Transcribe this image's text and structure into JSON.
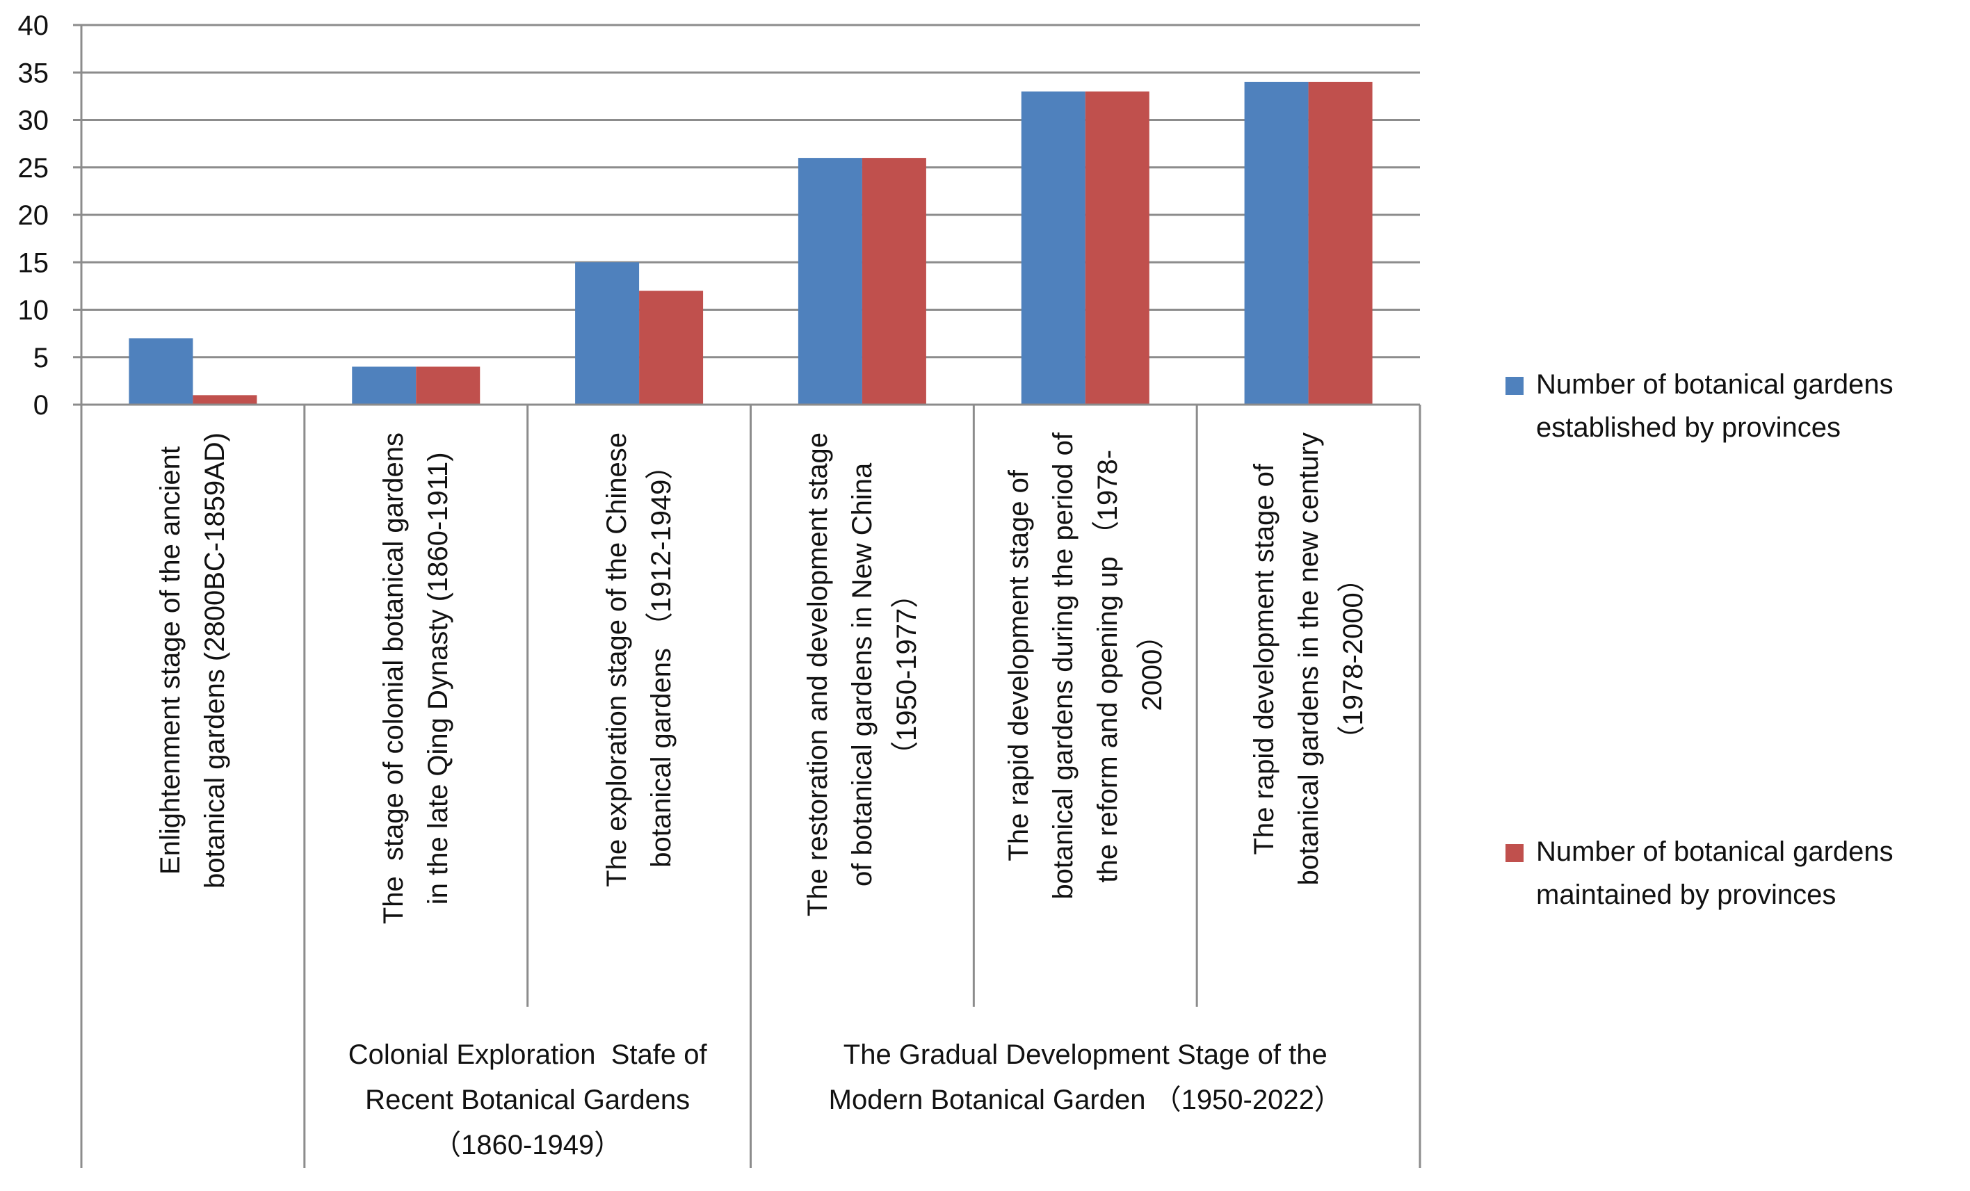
{
  "chart_data": {
    "type": "bar",
    "title": "",
    "xlabel": "",
    "ylabel": "",
    "ylim": [
      0,
      40
    ],
    "yticks": [
      0,
      5,
      10,
      15,
      20,
      25,
      30,
      35,
      40
    ],
    "grid": true,
    "legend_position": "right",
    "categories": [
      "Enlightenment stage of the ancient\nbotanical gardens (2800BC-1859AD)",
      "The  stage of colonial botanical gardens\nin the late Qing Dynasty (1860-1911)",
      "The exploration stage of the Chinese\nbotanical gardens （1912-1949）",
      "The restoration and development stage\nof botanical gardens in New China\n（1950-1977）",
      "The rapid development stage of\nbotanical gardens during the period of\nthe reform and opening up （1978-\n2000）",
      "The rapid development stage of\nbotanical gardens in the new century\n（1978-2000）"
    ],
    "groups": [
      {
        "label": "",
        "categories": [
          0
        ]
      },
      {
        "label": "Colonial Exploration  Stafe of\nRecent Botanical Gardens\n（1860-1949）",
        "categories": [
          1,
          2
        ]
      },
      {
        "label": "The Gradual Development Stage of the\nModern Botanical Garden （1950-2022）",
        "categories": [
          3,
          4,
          5
        ]
      }
    ],
    "series": [
      {
        "name": "Number of botanical gardens\nestablished by provinces",
        "color": "#4f81bd",
        "values": [
          7,
          4,
          15,
          26,
          33,
          34
        ]
      },
      {
        "name": "Number of botanical gardens\nmaintained by provinces",
        "color": "#c0504d",
        "values": [
          1,
          4,
          12,
          26,
          33,
          34
        ]
      }
    ]
  }
}
